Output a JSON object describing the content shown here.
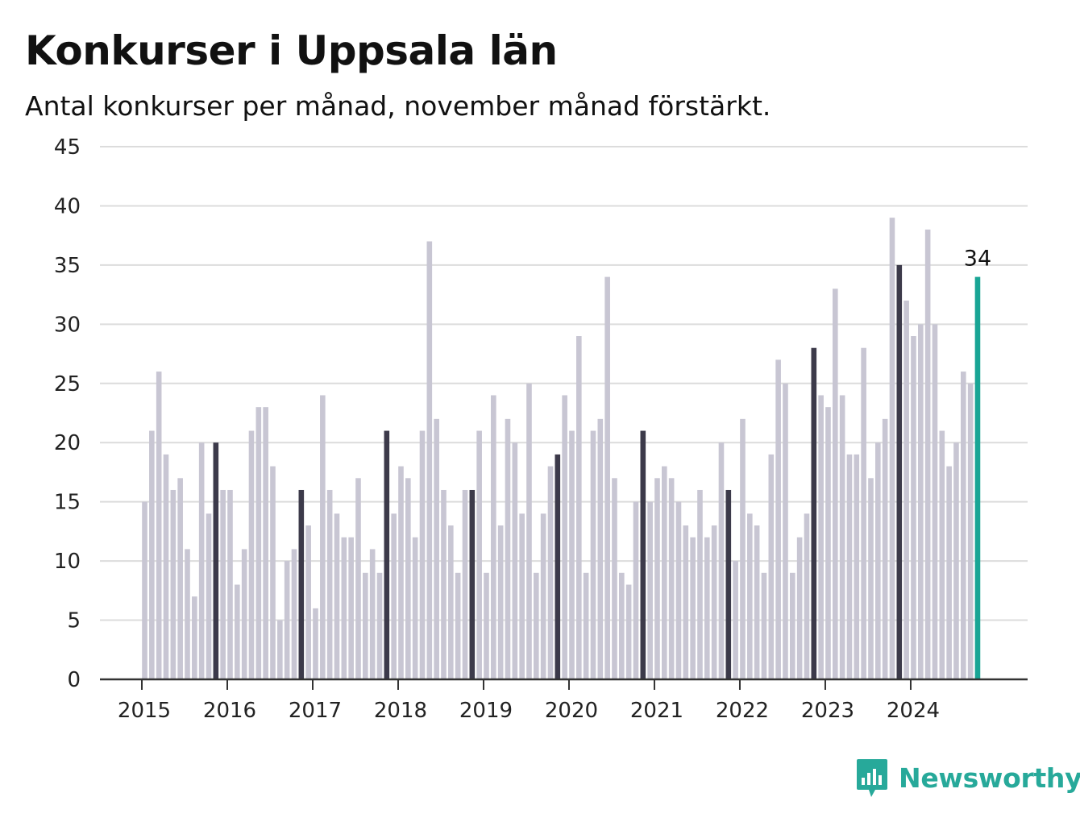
{
  "header": {
    "title": "Konkurser i Uppsala län",
    "subtitle": "Antal konkurser per månad, november månad förstärkt."
  },
  "brand": {
    "name": "Newsworthy",
    "icon": "bar-chart-speech-bubble-icon",
    "color": "#27a99a"
  },
  "colors": {
    "bar": "#c8c6d3",
    "november": "#3c3a4a",
    "latest": "#19a595",
    "grid": "#dcdcdc",
    "axis": "#333333"
  },
  "chart_data": {
    "type": "bar",
    "title": "Konkurser i Uppsala län",
    "subtitle": "Antal konkurser per månad, november månad förstärkt.",
    "start": "2015-01",
    "ylim": [
      0,
      45
    ],
    "yticks": [
      0,
      5,
      10,
      15,
      20,
      25,
      30,
      35,
      40,
      45
    ],
    "xticks": [
      "2015",
      "2016",
      "2017",
      "2018",
      "2019",
      "2020",
      "2021",
      "2022",
      "2023",
      "2024"
    ],
    "grid": true,
    "highlight": "november",
    "values": [
      15,
      21,
      26,
      19,
      16,
      17,
      11,
      7,
      20,
      14,
      20,
      16,
      16,
      8,
      11,
      21,
      23,
      23,
      18,
      5,
      10,
      11,
      16,
      13,
      6,
      24,
      16,
      14,
      12,
      12,
      17,
      9,
      11,
      9,
      21,
      14,
      18,
      17,
      12,
      21,
      37,
      22,
      16,
      13,
      9,
      16,
      16,
      21,
      9,
      24,
      13,
      22,
      20,
      14,
      25,
      9,
      14,
      18,
      19,
      24,
      21,
      29,
      9,
      21,
      22,
      34,
      17,
      9,
      8,
      15,
      21,
      15,
      17,
      18,
      17,
      15,
      13,
      12,
      16,
      12,
      13,
      20,
      16,
      10,
      22,
      14,
      13,
      9,
      19,
      27,
      25,
      9,
      12,
      14,
      28,
      24,
      23,
      33,
      24,
      19,
      19,
      28,
      17,
      20,
      22,
      39,
      35,
      32,
      29,
      30,
      38,
      30,
      21,
      18,
      20,
      26,
      25,
      34
    ],
    "value_label": "34"
  }
}
